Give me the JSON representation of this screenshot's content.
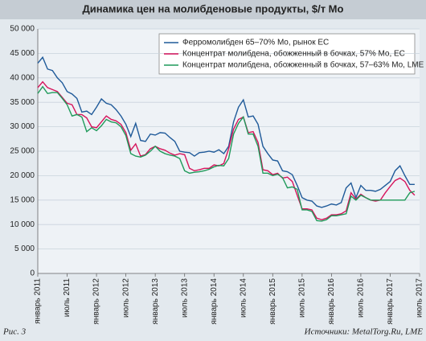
{
  "chart_data": {
    "type": "line",
    "title": "Динамика цен на молибденовые продукты, $/т Mo",
    "caption": "Рис. 3",
    "source": "Источники: MetalTorg.Ru, LME",
    "x": [
      "2011-01",
      "2011-02",
      "2011-03",
      "2011-04",
      "2011-05",
      "2011-06",
      "2011-07",
      "2011-08",
      "2011-09",
      "2011-10",
      "2011-11",
      "2011-12",
      "2012-01",
      "2012-02",
      "2012-03",
      "2012-04",
      "2012-05",
      "2012-06",
      "2012-07",
      "2012-08",
      "2012-09",
      "2012-10",
      "2012-11",
      "2012-12",
      "2013-01",
      "2013-02",
      "2013-03",
      "2013-04",
      "2013-05",
      "2013-06",
      "2013-07",
      "2013-08",
      "2013-09",
      "2013-10",
      "2013-11",
      "2013-12",
      "2014-01",
      "2014-02",
      "2014-03",
      "2014-04",
      "2014-05",
      "2014-06",
      "2014-07",
      "2014-08",
      "2014-09",
      "2014-10",
      "2014-11",
      "2014-12",
      "2015-01",
      "2015-02",
      "2015-03",
      "2015-04",
      "2015-05",
      "2015-06",
      "2015-07",
      "2015-08",
      "2015-09",
      "2015-10",
      "2015-11",
      "2015-12",
      "2016-01",
      "2016-02",
      "2016-03",
      "2016-04",
      "2016-05",
      "2016-06",
      "2016-07",
      "2016-08",
      "2016-09",
      "2016-10",
      "2016-11",
      "2016-12",
      "2017-01",
      "2017-02",
      "2017-03",
      "2017-04",
      "2017-05",
      "2017-06"
    ],
    "series": [
      {
        "name": "Ферромолибден 65–70% Mo, рынок ЕС",
        "color": "#1f5a99",
        "values": [
          43000,
          44200,
          41800,
          41500,
          40000,
          39000,
          37200,
          36700,
          35800,
          33000,
          33200,
          32500,
          34000,
          35700,
          34800,
          34500,
          33500,
          32200,
          30500,
          28000,
          30700,
          27200,
          27000,
          28500,
          28300,
          28800,
          28700,
          27800,
          27000,
          25000,
          24800,
          24700,
          24000,
          24700,
          24800,
          25000,
          24800,
          25300,
          24500,
          26000,
          31000,
          34000,
          35500,
          32000,
          32200,
          30500,
          26000,
          24500,
          23200,
          23000,
          21000,
          20800,
          20200,
          18000,
          15500,
          15000,
          14800,
          13800,
          13500,
          13800,
          14200,
          14000,
          14500,
          17500,
          18500,
          15500,
          18000,
          17000,
          17000,
          16800,
          17200,
          18000,
          18800,
          21000,
          22000,
          20000,
          18200,
          18200
        ]
      },
      {
        "name": "Концентрат молибдена, обожженный в бочках, 57% Mo, ЕС",
        "color": "#d6135b",
        "values": [
          38000,
          39200,
          38000,
          37600,
          37200,
          36000,
          34800,
          34500,
          32500,
          32500,
          31800,
          30000,
          29800,
          31000,
          32200,
          31500,
          31200,
          30500,
          28800,
          25200,
          26500,
          24000,
          24300,
          25500,
          26000,
          25500,
          25200,
          24600,
          24200,
          24500,
          24300,
          21500,
          21000,
          21200,
          21500,
          21500,
          22200,
          22000,
          22500,
          25500,
          29500,
          31500,
          32000,
          28800,
          29000,
          26800,
          21200,
          21000,
          20200,
          20500,
          19500,
          19700,
          18800,
          16000,
          13200,
          13200,
          13000,
          11300,
          11000,
          11300,
          12000,
          12000,
          12200,
          12800,
          16500,
          15200,
          16200,
          15500,
          15000,
          14800,
          15000,
          16500,
          17800,
          19000,
          19500,
          18800,
          17000,
          16000
        ]
      },
      {
        "name": "Концентрат молибдена, обожженный в бочках, 57–63% Mo, LME",
        "color": "#1f9a5a",
        "values": [
          36800,
          38200,
          36800,
          37000,
          37000,
          35800,
          34500,
          32200,
          32500,
          32000,
          29000,
          29800,
          29200,
          30200,
          31500,
          31000,
          30800,
          30000,
          28200,
          24500,
          24000,
          23800,
          24200,
          25000,
          26000,
          25000,
          24500,
          24200,
          24000,
          23500,
          21000,
          20500,
          20700,
          20800,
          21000,
          21300,
          21800,
          22100,
          22000,
          23500,
          28500,
          30700,
          32000,
          28500,
          28500,
          26000,
          20500,
          20500,
          20000,
          20300,
          19600,
          17500,
          17700,
          17200,
          13000,
          13000,
          12700,
          10800,
          10700,
          11000,
          11800,
          11800,
          12000,
          12200,
          15800,
          15000,
          16000,
          15500,
          15000,
          15000,
          15000,
          15000,
          15000,
          15000,
          15000,
          15000,
          16500,
          16800
        ]
      }
    ],
    "xlim": [
      "2011-01",
      "2017-07"
    ],
    "xticks": [
      {
        "value": "2011-01",
        "label": "январь 2011"
      },
      {
        "value": "2011-07",
        "label": "июль 2011"
      },
      {
        "value": "2012-01",
        "label": "январь 2012"
      },
      {
        "value": "2012-07",
        "label": "июль 2012"
      },
      {
        "value": "2013-01",
        "label": "январь 2013"
      },
      {
        "value": "2013-07",
        "label": "июль 2013"
      },
      {
        "value": "2014-01",
        "label": "январь 2014"
      },
      {
        "value": "2014-07",
        "label": "июль 2014"
      },
      {
        "value": "2015-01",
        "label": "январь 2015"
      },
      {
        "value": "2015-07",
        "label": "июль 2015"
      },
      {
        "value": "2016-01",
        "label": "январь 2016"
      },
      {
        "value": "2016-07",
        "label": "июль 2016"
      },
      {
        "value": "2017-01",
        "label": "январь 2017"
      },
      {
        "value": "2017-07",
        "label": "июль 2017"
      }
    ],
    "ylim": [
      0,
      50000
    ],
    "yticks": [
      0,
      {
        "value": 5000,
        "label": "5 000"
      },
      {
        "value": 10000,
        "label": "10 000"
      },
      {
        "value": 15000,
        "label": "15 000"
      },
      {
        "value": 20000,
        "label": "20 000"
      },
      {
        "value": 25000,
        "label": "25 000"
      },
      {
        "value": 30000,
        "label": "30 000"
      },
      {
        "value": 35000,
        "label": "35 000"
      },
      {
        "value": 40000,
        "label": "40 000"
      },
      {
        "value": 45000,
        "label": "45 000"
      },
      {
        "value": 50000,
        "label": "50 000"
      }
    ],
    "grid": true
  }
}
